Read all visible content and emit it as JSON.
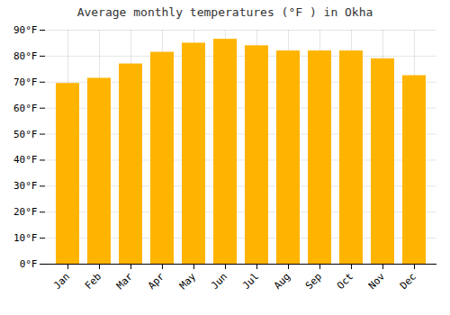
{
  "chart_data": {
    "type": "bar",
    "title": "Average monthly temperatures (°F ) in Okha",
    "categories": [
      "Jan",
      "Feb",
      "Mar",
      "Apr",
      "May",
      "Jun",
      "Jul",
      "Aug",
      "Sep",
      "Oct",
      "Nov",
      "Dec"
    ],
    "values": [
      69.5,
      71.5,
      77.0,
      81.5,
      85.0,
      86.5,
      84.0,
      82.0,
      82.0,
      82.0,
      79.0,
      72.5
    ],
    "color": "#FFB400",
    "ylim": [
      0,
      90
    ],
    "yticks": [
      {
        "value": 0,
        "label": "0°F"
      },
      {
        "value": 10,
        "label": "10°F"
      },
      {
        "value": 20,
        "label": "20°F"
      },
      {
        "value": 30,
        "label": "30°F"
      },
      {
        "value": 40,
        "label": "40°F"
      },
      {
        "value": 50,
        "label": "50°F"
      },
      {
        "value": 60,
        "label": "60°F"
      },
      {
        "value": 70,
        "label": "70°F"
      },
      {
        "value": 80,
        "label": "80°F"
      },
      {
        "value": 90,
        "label": "90°F"
      }
    ],
    "grid": true
  }
}
